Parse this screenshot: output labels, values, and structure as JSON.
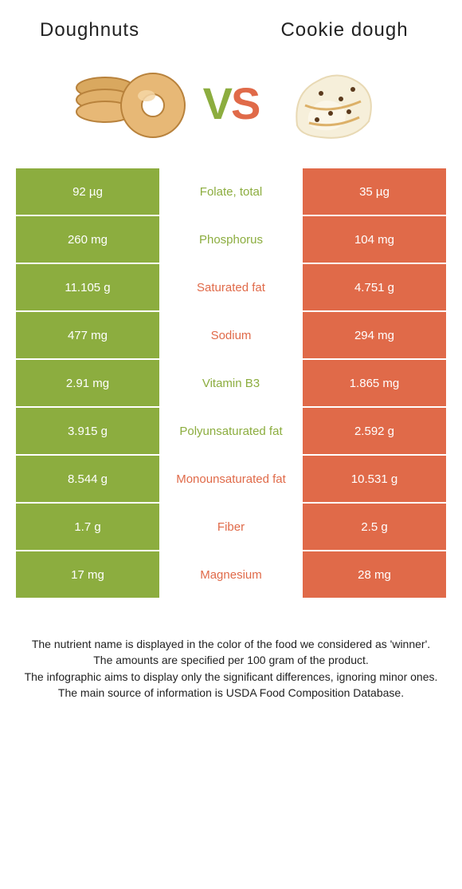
{
  "header": {
    "left_title": "Doughnuts",
    "right_title": "Cookie dough",
    "vs_v": "V",
    "vs_s": "S"
  },
  "colors": {
    "left": "#8cad3f",
    "right": "#e06a49",
    "bg": "#ffffff",
    "text": "#222222"
  },
  "table": {
    "type": "comparison-table",
    "columns": [
      "left_value",
      "nutrient",
      "right_value"
    ],
    "rows": [
      {
        "left": "92 µg",
        "nutrient": "Folate, total",
        "winner": "left",
        "right": "35 µg"
      },
      {
        "left": "260 mg",
        "nutrient": "Phosphorus",
        "winner": "left",
        "right": "104 mg"
      },
      {
        "left": "11.105 g",
        "nutrient": "Saturated fat",
        "winner": "right",
        "right": "4.751 g"
      },
      {
        "left": "477 mg",
        "nutrient": "Sodium",
        "winner": "right",
        "right": "294 mg"
      },
      {
        "left": "2.91 mg",
        "nutrient": "Vitamin B3",
        "winner": "left",
        "right": "1.865 mg"
      },
      {
        "left": "3.915 g",
        "nutrient": "Polyunsaturated fat",
        "winner": "left",
        "right": "2.592 g"
      },
      {
        "left": "8.544 g",
        "nutrient": "Monounsaturated fat",
        "winner": "right",
        "right": "10.531 g"
      },
      {
        "left": "1.7 g",
        "nutrient": "Fiber",
        "winner": "right",
        "right": "2.5 g"
      },
      {
        "left": "17 mg",
        "nutrient": "Magnesium",
        "winner": "right",
        "right": "28 mg"
      }
    ]
  },
  "footer": {
    "line1": "The nutrient name is displayed in the color of the food we considered as 'winner'.",
    "line2": "The amounts are specified per 100 gram of the product.",
    "line3": "The infographic aims to display only the significant differences, ignoring minor ones.",
    "line4": "The main source of information is USDA Food Composition Database."
  }
}
